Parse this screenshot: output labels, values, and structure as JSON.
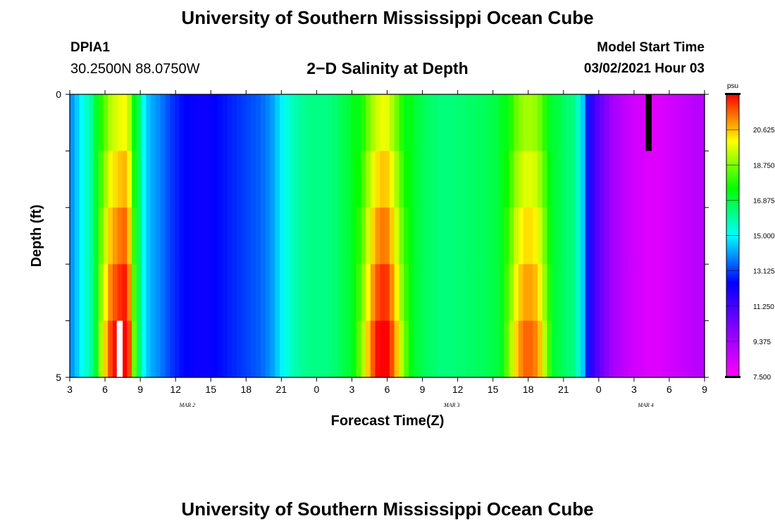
{
  "page": {
    "title_top": "University of Southern Mississippi Ocean Cube",
    "title_bottom": "University of Southern Mississippi Ocean Cube",
    "station_id": "DPIA1",
    "station_coords": "30.2500N 88.0750W",
    "model_start_label": "Model Start Time",
    "model_start_value": "03/02/2021 Hour 03"
  },
  "colors": {
    "colormap": [
      "#ff00ff",
      "#8800ff",
      "#0000ff",
      "#00ffff",
      "#00ff00",
      "#ffff00",
      "#ff0000"
    ],
    "missing_low": "#ffffff",
    "missing_high": "#000000"
  },
  "chart_data": {
    "type": "heatmap",
    "title": "2−D Salinity at Depth",
    "xlabel": "Forecast Time(Z)",
    "ylabel": "Depth (ft)",
    "x_tick_labels": [
      "3",
      "6",
      "9",
      "12",
      "15",
      "18",
      "21",
      "0",
      "3",
      "6",
      "9",
      "12",
      "15",
      "18",
      "21",
      "0",
      "3",
      "6",
      "9"
    ],
    "x_range_hours": [
      0,
      54
    ],
    "date_labels": [
      {
        "label": "MAR 2",
        "hour": 10
      },
      {
        "label": "MAR 3",
        "hour": 32.5
      },
      {
        "label": "MAR 4",
        "hour": 49
      }
    ],
    "y_tick_labels": [
      "0",
      "5"
    ],
    "depth_range_ft": [
      0,
      5
    ],
    "depth_levels": 5,
    "colorbar": {
      "unit": "psu",
      "min": 7.5,
      "max": 22.5,
      "tick_labels": [
        "20.625",
        "18.750",
        "16.875",
        "15.000",
        "13.125",
        "11.250",
        "9.375",
        "7.500"
      ]
    },
    "salinity_psu_by_hour": [
      14.0,
      14.5,
      15.0,
      15.5,
      16.0,
      17.0,
      18.5,
      19.5,
      20.5,
      21.0,
      21.3,
      21.5,
      20.5,
      18.0,
      16.5,
      15.0,
      14.4,
      14.1,
      13.9,
      13.6,
      13.3,
      13.0,
      12.8,
      12.6,
      12.5,
      12.4,
      12.3,
      12.3,
      12.3,
      12.4,
      12.5,
      12.6,
      12.7,
      12.8,
      12.9,
      13.0,
      13.1,
      13.2,
      13.3,
      13.4,
      13.6,
      13.8,
      14.1,
      14.5,
      14.9,
      15.3,
      15.6,
      15.8,
      16.0,
      16.1,
      16.2,
      16.2,
      16.2,
      16.2,
      16.3,
      16.4,
      16.6,
      16.8,
      17.0,
      17.3,
      17.8,
      18.6,
      19.5,
      20.4,
      21.0,
      21.3,
      21.2,
      20.5,
      19.6,
      18.6,
      17.8,
      17.3,
      17.0,
      16.8,
      16.6,
      16.5,
      16.4,
      16.3,
      16.3,
      16.3,
      16.3,
      16.4,
      16.4,
      16.5,
      16.5,
      16.6,
      16.6,
      16.7,
      16.8,
      16.9,
      17.2,
      17.8,
      18.6,
      19.4,
      20.0,
      20.3,
      20.3,
      20.1,
      19.6,
      18.6,
      17.6,
      17.0,
      16.8,
      16.6,
      16.4,
      16.2,
      15.6,
      14.5,
      12.8,
      11.6,
      11.0,
      10.5,
      10.0,
      9.5,
      9.2,
      9.0,
      8.8,
      8.6,
      8.5,
      8.4,
      8.3,
      8.2,
      8.2,
      8.2,
      8.3,
      8.4,
      8.5,
      8.6,
      8.7,
      8.8,
      8.9,
      9.0,
      9.0
    ],
    "missing_cells": [
      {
        "hour": 4,
        "depth_level": 5,
        "kind": "low"
      },
      {
        "hour": 49,
        "depth_level": 1,
        "kind": "high"
      }
    ]
  }
}
